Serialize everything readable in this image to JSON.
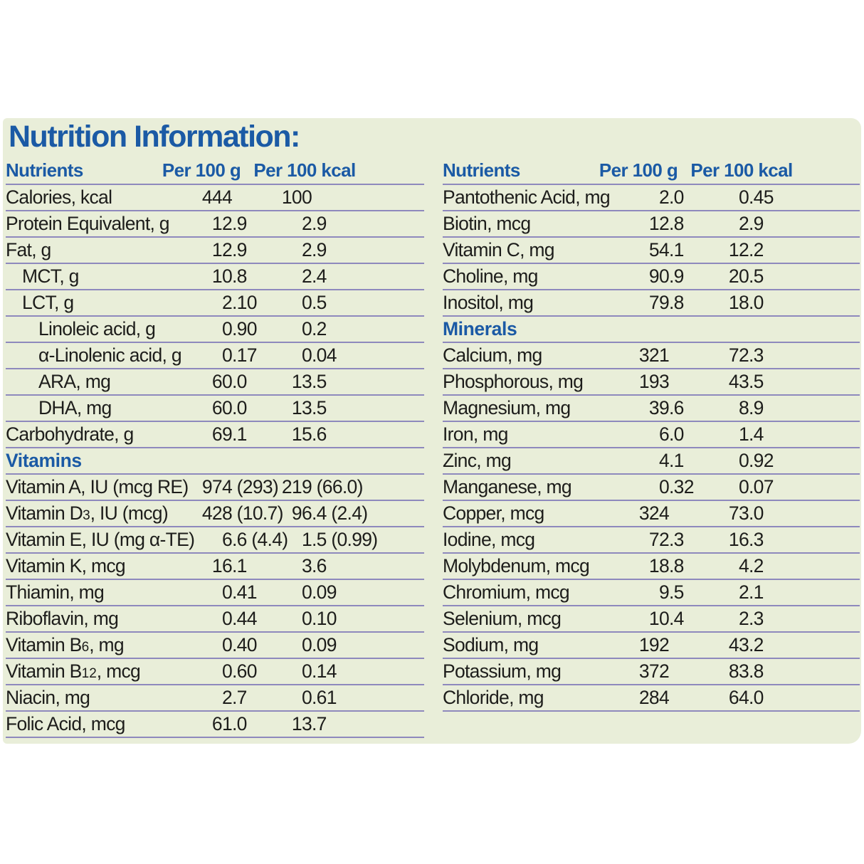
{
  "title": "Nutrition Information:",
  "colors": {
    "panel_background": "#e9eed9",
    "heading_blue": "#1b5aa5",
    "rule_purple": "#8e89bd",
    "body_text": "#1d1d1b"
  },
  "columns": {
    "nutrients": "Nutrients",
    "per_100g": "Per 100 g",
    "per_100kcal": "Per 100 kcal"
  },
  "tables": [
    {
      "name": "left",
      "rows": [
        {
          "label": "Calories, kcal",
          "per_100g": "444",
          "per_100kcal": "100"
        },
        {
          "label": "Protein Equivalent, g",
          "per_100g": "12.9",
          "per_100kcal": "2.9"
        },
        {
          "label": "Fat, g",
          "per_100g": "12.9",
          "per_100kcal": "2.9"
        },
        {
          "label": "MCT, g",
          "indent": 1,
          "per_100g": "10.8",
          "per_100kcal": "2.4"
        },
        {
          "label": "LCT, g",
          "indent": 1,
          "per_100g": "2.10",
          "per_100kcal": "0.5"
        },
        {
          "label": "Linoleic acid, g",
          "indent": 2,
          "per_100g": "0.90",
          "per_100kcal": "0.2"
        },
        {
          "label": "α-Linolenic acid, g",
          "indent": 2,
          "per_100g": "0.17",
          "per_100kcal": "0.04"
        },
        {
          "label": "ARA, mg",
          "indent": 2,
          "per_100g": "60.0",
          "per_100kcal": "13.5"
        },
        {
          "label": "DHA, mg",
          "indent": 2,
          "per_100g": "60.0",
          "per_100kcal": "13.5"
        },
        {
          "label": "Carbohydrate, g",
          "per_100g": "69.1",
          "per_100kcal": "15.6"
        },
        {
          "section": "Vitamins"
        },
        {
          "label": "Vitamin A, IU (mcg RE)",
          "per_100g": "974 (293)",
          "per_100kcal": "219 (66.0)"
        },
        {
          "label": "Vitamin D_{3}, IU (mcg)",
          "per_100g": "428 (10.7)",
          "per_100kcal": "96.4 (2.4)"
        },
        {
          "label": "Vitamin E, IU (mg α-TE)",
          "per_100g": "6.6 (4.4)",
          "per_100kcal": "1.5 (0.99)"
        },
        {
          "label": "Vitamin K, mcg",
          "per_100g": "16.1",
          "per_100kcal": "3.6"
        },
        {
          "label": "Thiamin, mg",
          "per_100g": "0.41",
          "per_100kcal": "0.09"
        },
        {
          "label": "Riboflavin, mg",
          "per_100g": "0.44",
          "per_100kcal": "0.10"
        },
        {
          "label": "Vitamin B_{6}, mg",
          "per_100g": "0.40",
          "per_100kcal": "0.09"
        },
        {
          "label": "Vitamin B_{12}, mcg",
          "per_100g": "0.60",
          "per_100kcal": "0.14"
        },
        {
          "label": "Niacin, mg",
          "per_100g": "2.7",
          "per_100kcal": "0.61"
        },
        {
          "label": "Folic Acid, mcg",
          "per_100g": "61.0",
          "per_100kcal": "13.7"
        }
      ]
    },
    {
      "name": "right",
      "rows": [
        {
          "label": "Pantothenic Acid, mg",
          "per_100g": "2.0",
          "per_100kcal": "0.45"
        },
        {
          "label": "Biotin, mcg",
          "per_100g": "12.8",
          "per_100kcal": "2.9"
        },
        {
          "label": "Vitamin C, mg",
          "per_100g": "54.1",
          "per_100kcal": "12.2"
        },
        {
          "label": "Choline, mg",
          "per_100g": "90.9",
          "per_100kcal": "20.5"
        },
        {
          "label": "Inositol, mg",
          "per_100g": "79.8",
          "per_100kcal": "18.0"
        },
        {
          "section": "Minerals"
        },
        {
          "label": "Calcium, mg",
          "per_100g": "321",
          "per_100kcal": "72.3"
        },
        {
          "label": "Phosphorous, mg",
          "per_100g": "193",
          "per_100kcal": "43.5"
        },
        {
          "label": "Magnesium, mg",
          "per_100g": "39.6",
          "per_100kcal": "8.9"
        },
        {
          "label": "Iron, mg",
          "per_100g": "6.0",
          "per_100kcal": "1.4"
        },
        {
          "label": "Zinc, mg",
          "per_100g": "4.1",
          "per_100kcal": "0.92"
        },
        {
          "label": "Manganese, mg",
          "per_100g": "0.32",
          "per_100kcal": "0.07"
        },
        {
          "label": "Copper, mcg",
          "per_100g": "324",
          "per_100kcal": "73.0"
        },
        {
          "label": "Iodine, mcg",
          "per_100g": "72.3",
          "per_100kcal": "16.3"
        },
        {
          "label": "Molybdenum, mcg",
          "per_100g": "18.8",
          "per_100kcal": "4.2"
        },
        {
          "label": "Chromium, mcg",
          "per_100g": "9.5",
          "per_100kcal": "2.1"
        },
        {
          "label": "Selenium, mcg",
          "per_100g": "10.4",
          "per_100kcal": "2.3"
        },
        {
          "label": "Sodium, mg",
          "per_100g": "192",
          "per_100kcal": "43.2"
        },
        {
          "label": "Potassium, mg",
          "per_100g": "372",
          "per_100kcal": "83.8"
        },
        {
          "label": "Chloride, mg",
          "per_100g": "284",
          "per_100kcal": "64.0"
        }
      ]
    }
  ]
}
